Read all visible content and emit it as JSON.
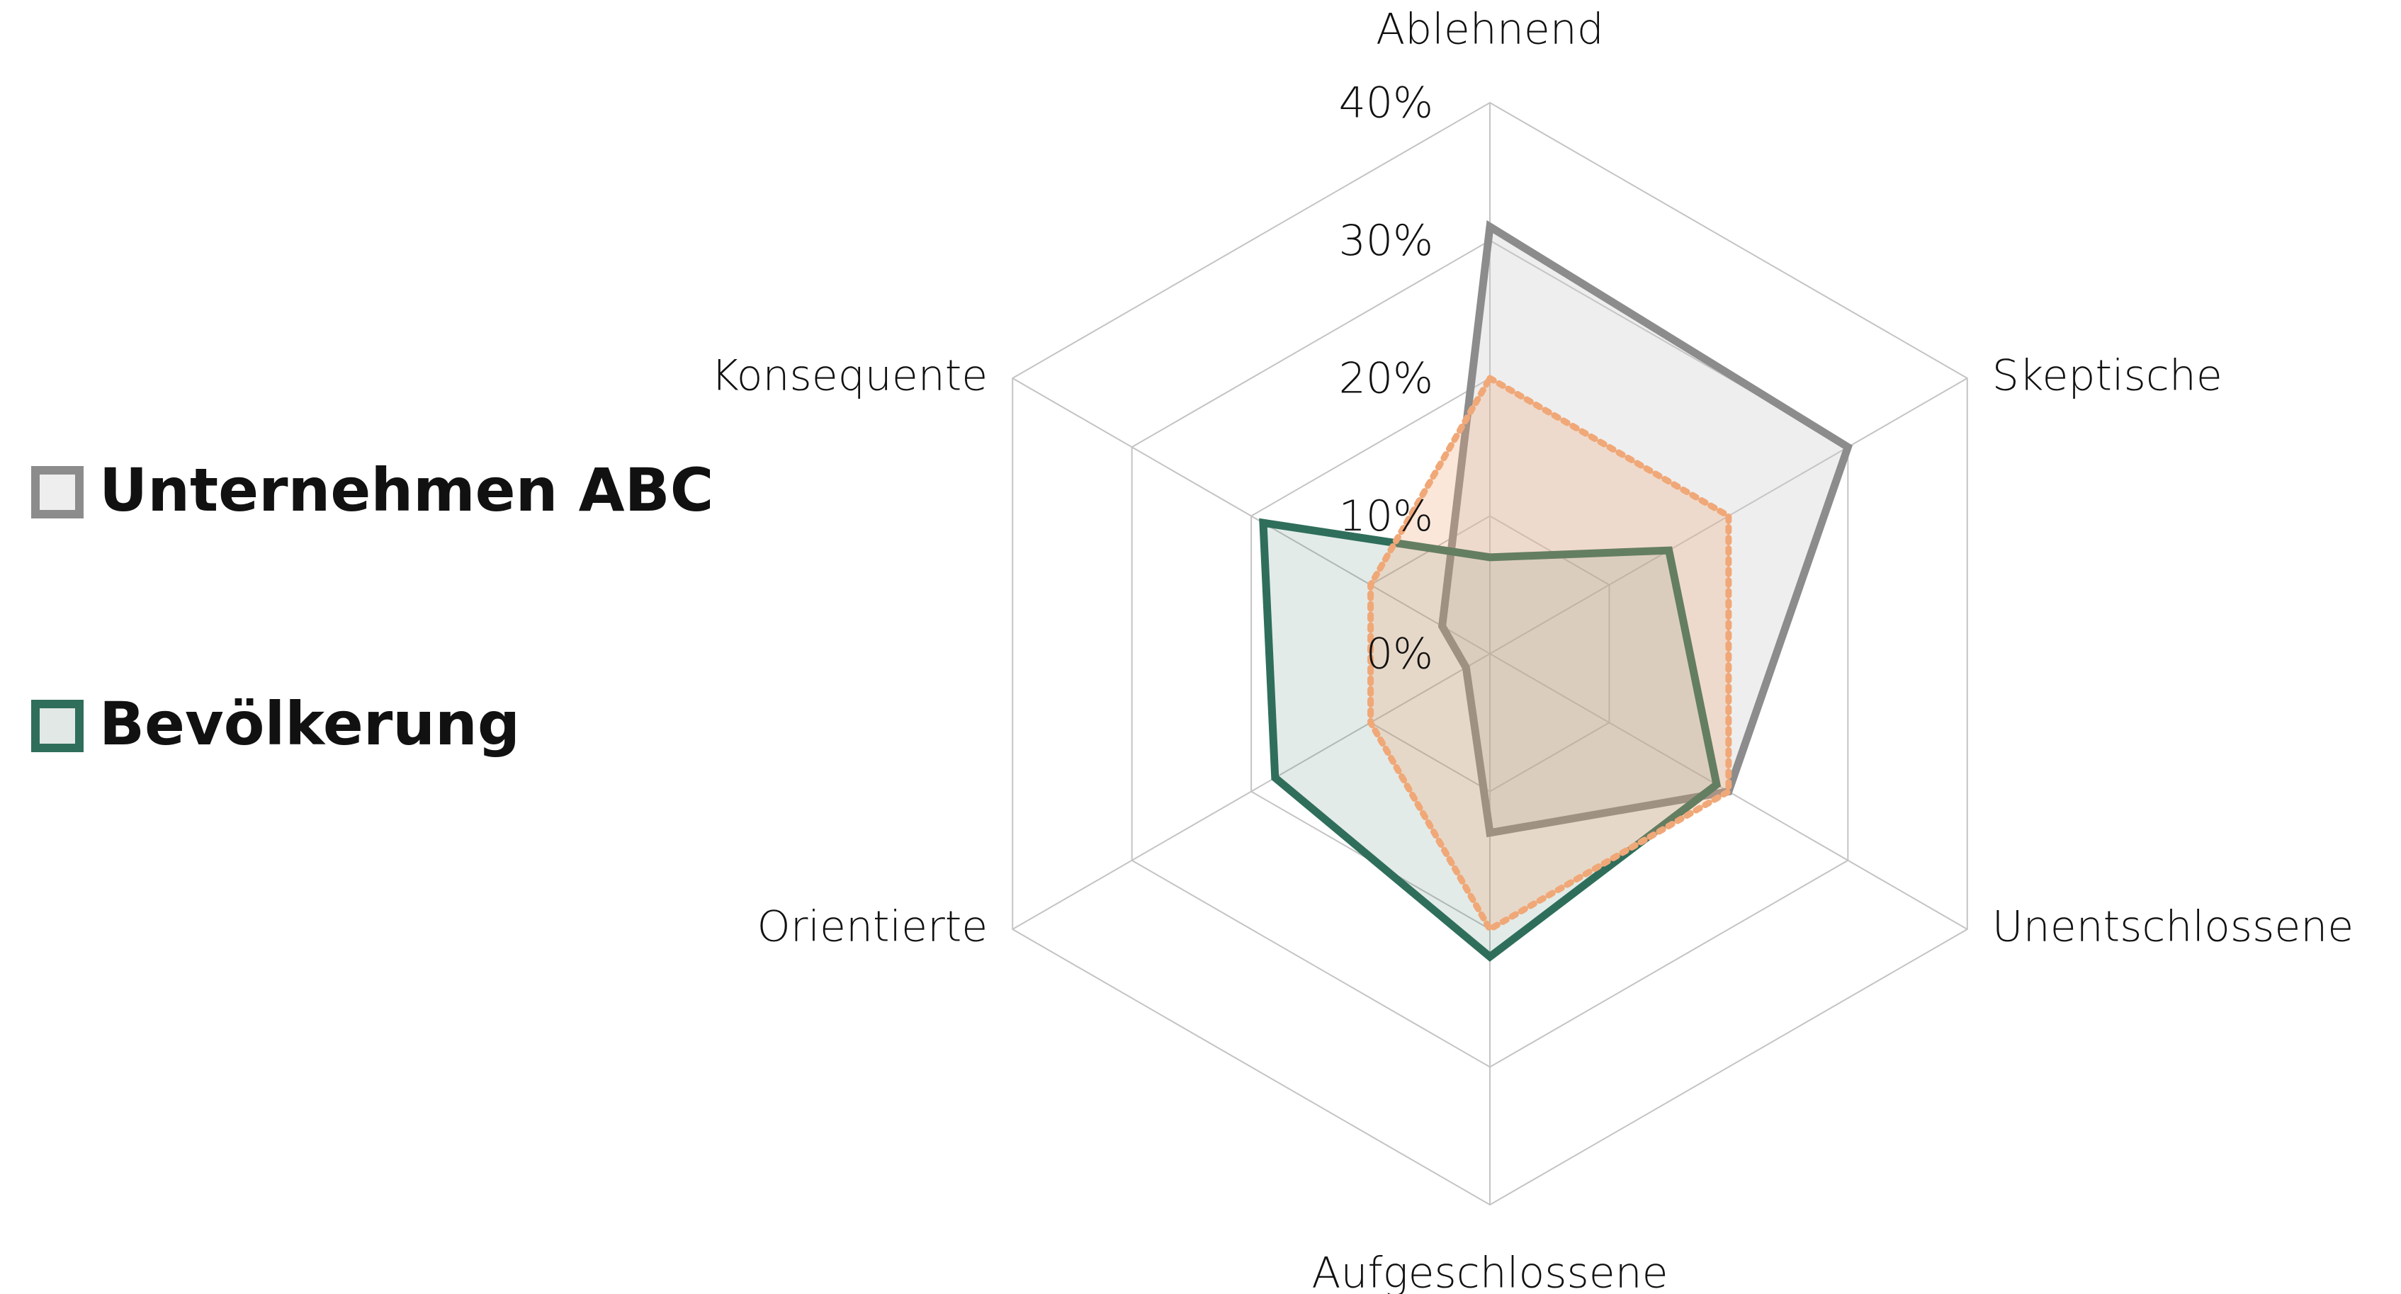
{
  "chart_data": {
    "type": "radar",
    "categories": [
      "Ablehnend",
      "Skeptische",
      "Unentschlossene",
      "Aufgeschlossene",
      "Orientierte",
      "Konsequente"
    ],
    "series": [
      {
        "name": "Unternehmen ABC",
        "color": "#8c8c8c",
        "values": [
          31,
          30,
          20,
          13,
          2,
          4
        ]
      },
      {
        "name": "Bevölkerung",
        "color": "#2f6e5b",
        "values": [
          7,
          15,
          19,
          22,
          18,
          19
        ]
      },
      {
        "color": "#f0a878",
        "values": [
          20,
          20,
          20,
          20,
          10,
          10
        ]
      }
    ],
    "ylim": [
      0,
      40
    ],
    "yticks": [
      {
        "value": 0,
        "label": "0%"
      },
      {
        "value": 10,
        "label": "10%"
      },
      {
        "value": 20,
        "label": "20%"
      },
      {
        "value": 30,
        "label": "30%"
      },
      {
        "value": 40,
        "label": "40%"
      }
    ],
    "grid": true
  }
}
